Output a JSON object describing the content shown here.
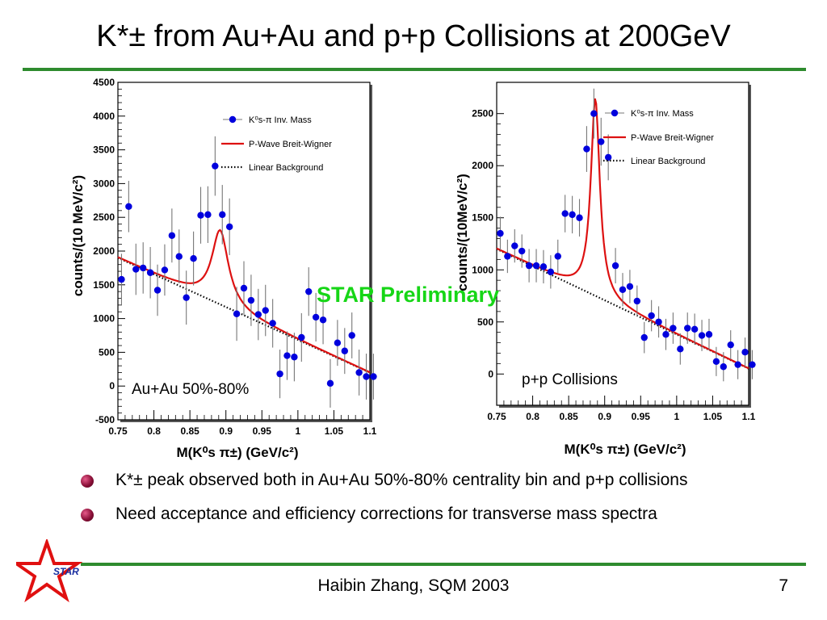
{
  "slide": {
    "title": "K*± from Au+Au and p+p Collisions at 200GeV",
    "preliminary": "STAR Preliminary",
    "bullets": [
      "K*± peak observed both in Au+Au 50%-80% centrality bin and p+p collisions",
      "Need acceptance and efficiency corrections for transverse mass spectra"
    ],
    "footer": "Haibin Zhang, SQM 2003",
    "page_number": "7",
    "logo_text": "STAR",
    "colors": {
      "rule": "#2e8b2e",
      "preliminary": "#16d616",
      "data_points": "#0000dd",
      "fit": "#dd1111",
      "bullet": "#8a1038"
    }
  },
  "chart_data": [
    {
      "type": "scatter",
      "panel_label": "Au+Au 50%-80%",
      "ylabel": "counts/(10 MeV/c²)",
      "xlabel": "M(K⁰s π±) (GeV/c²)",
      "xlim": [
        0.75,
        1.1
      ],
      "ylim": [
        -500,
        4500
      ],
      "x_ticks": [
        0.75,
        0.8,
        0.85,
        0.9,
        0.95,
        1,
        1.05,
        1.1
      ],
      "x_tick_labels": [
        "0.75",
        "0.8",
        "0.85",
        "0.9",
        "0.95",
        "1",
        "1.05",
        "1.1"
      ],
      "y_ticks": [
        -500,
        0,
        500,
        1000,
        1500,
        2000,
        2500,
        3000,
        3500,
        4000,
        4500
      ],
      "y_tick_labels": [
        "-500",
        "0",
        "500",
        "1000",
        "1500",
        "2000",
        "2500",
        "3000",
        "3500",
        "4000",
        "4500"
      ],
      "legend": [
        "K⁰s-π Inv. Mass",
        "P-Wave Breit-Wigner",
        "Linear Background"
      ],
      "series": [
        {
          "name": "K⁰s-π Inv. Mass",
          "kind": "points_with_errors",
          "x": [
            0.755,
            0.765,
            0.775,
            0.785,
            0.795,
            0.805,
            0.815,
            0.825,
            0.835,
            0.845,
            0.855,
            0.865,
            0.875,
            0.885,
            0.895,
            0.905,
            0.915,
            0.925,
            0.935,
            0.945,
            0.955,
            0.965,
            0.975,
            0.985,
            0.995,
            1.005,
            1.015,
            1.025,
            1.035,
            1.045,
            1.055,
            1.065,
            1.075,
            1.085,
            1.095,
            1.105
          ],
          "y": [
            1580,
            2660,
            1730,
            1750,
            1680,
            1420,
            1720,
            2230,
            1920,
            1310,
            1890,
            2530,
            2540,
            3260,
            2540,
            2360,
            1070,
            1450,
            1270,
            1060,
            1120,
            930,
            180,
            450,
            430,
            720,
            1400,
            1020,
            980,
            40,
            640,
            520,
            750,
            200,
            140,
            140
          ],
          "err": [
            380,
            380,
            380,
            380,
            380,
            380,
            380,
            400,
            400,
            400,
            400,
            420,
            420,
            440,
            440,
            420,
            400,
            400,
            380,
            380,
            380,
            360,
            360,
            360,
            360,
            360,
            360,
            360,
            360,
            360,
            340,
            340,
            340,
            340,
            340,
            340
          ]
        },
        {
          "name": "P-Wave Breit-Wigner",
          "kind": "fit_curve",
          "background": [
            1900,
            -4860
          ],
          "mass": 0.892,
          "width": 0.028,
          "amplitude": 1100
        },
        {
          "name": "Linear Background",
          "kind": "dotted_line",
          "intercept": 1900,
          "slope": -4860
        }
      ]
    },
    {
      "type": "scatter",
      "panel_label": "p+p Collisions",
      "ylabel": "counts/(10MeV/c²)",
      "xlabel": "M(K⁰s π±) (GeV/c²)",
      "xlim": [
        0.75,
        1.1
      ],
      "ylim": [
        -300,
        2800
      ],
      "x_ticks": [
        0.75,
        0.8,
        0.85,
        0.9,
        0.95,
        1,
        1.05,
        1.1
      ],
      "x_tick_labels": [
        "0.75",
        "0.8",
        "0.85",
        "0.9",
        "0.95",
        "1",
        "1.05",
        "1.1"
      ],
      "y_ticks": [
        0,
        500,
        1000,
        1500,
        2000,
        2500
      ],
      "y_tick_labels": [
        "0",
        "500",
        "1000",
        "1500",
        "2000",
        "2500"
      ],
      "legend": [
        "K⁰s-π Inv. Mass",
        "P-Wave Breit-Wigner",
        "Linear Background"
      ],
      "series": [
        {
          "name": "K⁰s-π Inv. Mass",
          "kind": "points_with_errors",
          "x": [
            0.755,
            0.765,
            0.775,
            0.785,
            0.795,
            0.805,
            0.815,
            0.825,
            0.835,
            0.845,
            0.855,
            0.865,
            0.875,
            0.885,
            0.895,
            0.905,
            0.915,
            0.925,
            0.935,
            0.945,
            0.955,
            0.965,
            0.975,
            0.985,
            0.995,
            1.005,
            1.015,
            1.025,
            1.035,
            1.045,
            1.055,
            1.065,
            1.075,
            1.085,
            1.095,
            1.105
          ],
          "y": [
            1350,
            1130,
            1230,
            1180,
            1040,
            1040,
            1030,
            980,
            1130,
            1540,
            1530,
            1500,
            2160,
            2500,
            2230,
            2080,
            1040,
            810,
            840,
            700,
            350,
            560,
            500,
            380,
            440,
            240,
            440,
            430,
            370,
            380,
            120,
            70,
            280,
            90,
            210,
            90
          ],
          "err": [
            160,
            160,
            160,
            160,
            160,
            160,
            160,
            160,
            160,
            180,
            180,
            180,
            220,
            240,
            230,
            220,
            170,
            160,
            160,
            150,
            150,
            150,
            150,
            150,
            150,
            150,
            150,
            150,
            150,
            150,
            140,
            140,
            140,
            140,
            140,
            140
          ]
        },
        {
          "name": "P-Wave Breit-Wigner",
          "kind": "fit_curve",
          "background": [
            1200,
            -3280
          ],
          "mass": 0.887,
          "width": 0.015,
          "amplitude": 1900
        },
        {
          "name": "Linear Background",
          "kind": "dotted_line",
          "intercept": 1200,
          "slope": -3280
        }
      ]
    }
  ]
}
